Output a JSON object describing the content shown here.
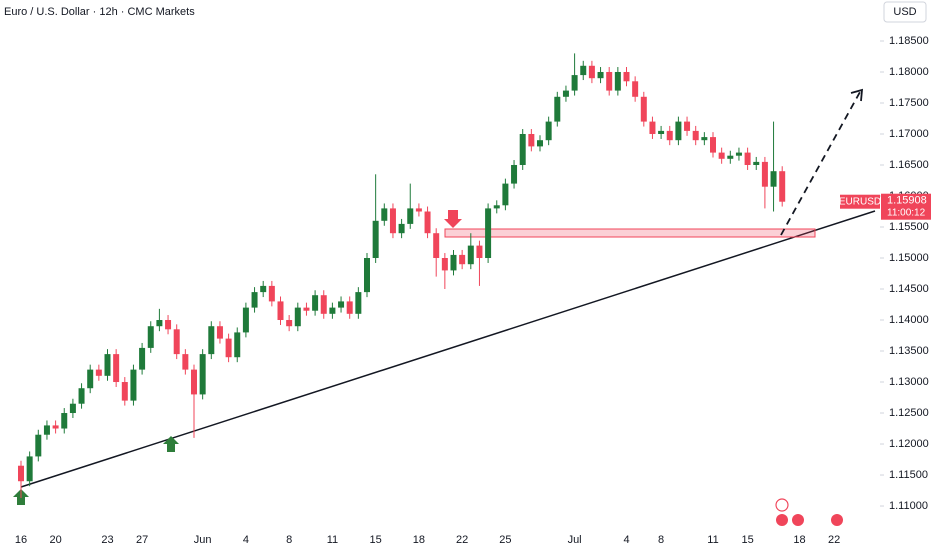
{
  "chart_data": {
    "type": "candlestick",
    "title": "Euro / U.S. Dollar · 12h · CMC Markets",
    "currency": "USD",
    "symbol": "EURUSD",
    "countdown": "11:00:12",
    "up_color": "#1f7a3a",
    "down_color": "#f0455a",
    "categories": [
      "16",
      null,
      null,
      null,
      "20",
      null,
      null,
      null,
      null,
      null,
      "23",
      null,
      null,
      null,
      "27",
      null,
      null,
      null,
      null,
      null,
      null,
      "Jun",
      null,
      null,
      null,
      null,
      "4",
      null,
      null,
      null,
      null,
      "8",
      null,
      null,
      null,
      null,
      "11",
      null,
      null,
      null,
      null,
      "15",
      null,
      null,
      null,
      null,
      "18",
      null,
      null,
      null,
      null,
      "22",
      null,
      null,
      null,
      null,
      "25",
      null,
      null,
      null,
      null,
      null,
      null,
      null,
      "Jul",
      null,
      null,
      null,
      null,
      null,
      "4",
      null,
      null,
      null,
      "8",
      null,
      null,
      null,
      null,
      null,
      "11",
      null,
      null,
      null,
      "15",
      null,
      null,
      null,
      null,
      null,
      "18",
      null,
      null,
      null,
      "22",
      null,
      null,
      null,
      null,
      null
    ],
    "open": [
      1.1165,
      1.114,
      1.118,
      1.1215,
      1.123,
      1.1225,
      1.125,
      1.1265,
      1.129,
      1.132,
      1.131,
      1.1345,
      1.13,
      1.127,
      1.132,
      1.1355,
      1.139,
      1.14,
      1.1385,
      1.1345,
      1.132,
      1.128,
      1.1345,
      1.139,
      1.137,
      1.134,
      1.138,
      1.142,
      1.1445,
      1.1455,
      1.143,
      1.14,
      1.139,
      1.142,
      1.1415,
      1.144,
      1.141,
      1.142,
      1.143,
      1.141,
      1.1445,
      1.15,
      1.156,
      1.158,
      1.154,
      1.1555,
      1.158,
      1.1575,
      1.154,
      1.15,
      1.148,
      1.1505,
      1.149,
      1.152,
      1.15,
      1.158,
      1.1585,
      1.162,
      1.165,
      1.17,
      1.168,
      1.169,
      1.172,
      1.176,
      1.177,
      1.1795,
      1.181,
      1.179,
      1.18,
      1.177,
      1.18,
      1.1785,
      1.176,
      1.172,
      1.17,
      1.1705,
      1.169,
      1.172,
      1.1705,
      1.169,
      1.1695,
      1.167,
      1.166,
      1.1665,
      1.167,
      1.165,
      1.1655,
      1.1615,
      1.164,
      null,
      null,
      null,
      null,
      null,
      null,
      null,
      null,
      null,
      null,
      null
    ],
    "high": [
      1.1173,
      1.1188,
      1.1223,
      1.1238,
      1.1238,
      1.1258,
      1.1273,
      1.1298,
      1.1328,
      1.1328,
      1.1353,
      1.1353,
      1.1308,
      1.1328,
      1.1363,
      1.1398,
      1.1418,
      1.1408,
      1.1393,
      1.1353,
      1.1328,
      1.1353,
      1.1398,
      1.1398,
      1.1378,
      1.1388,
      1.1428,
      1.1453,
      1.1463,
      1.1463,
      1.1438,
      1.1408,
      1.1428,
      1.1428,
      1.1448,
      1.1448,
      1.1428,
      1.1438,
      1.1438,
      1.1453,
      1.1508,
      1.1635,
      1.1588,
      1.1588,
      1.1563,
      1.162,
      1.1588,
      1.1583,
      1.1548,
      1.1508,
      1.1513,
      1.1513,
      1.154,
      1.1528,
      1.1588,
      1.1593,
      1.1628,
      1.1658,
      1.1708,
      1.1708,
      1.1698,
      1.1728,
      1.1768,
      1.1778,
      1.183,
      1.1818,
      1.1818,
      1.1808,
      1.1808,
      1.1808,
      1.1808,
      1.1793,
      1.1768,
      1.1728,
      1.1713,
      1.1713,
      1.1728,
      1.1728,
      1.1713,
      1.1703,
      1.1703,
      1.1678,
      1.1673,
      1.1678,
      1.1678,
      1.1663,
      1.1663,
      1.172,
      1.1648,
      null,
      null,
      null,
      null,
      null,
      null,
      null,
      null,
      null,
      null,
      null
    ],
    "low": [
      1.1113,
      1.1132,
      1.1172,
      1.1207,
      1.1217,
      1.1217,
      1.1242,
      1.1257,
      1.1282,
      1.1302,
      1.1302,
      1.1292,
      1.1262,
      1.1262,
      1.1312,
      1.1347,
      1.1382,
      1.1377,
      1.1337,
      1.1312,
      1.121,
      1.1272,
      1.1337,
      1.1362,
      1.1332,
      1.1332,
      1.1372,
      1.1412,
      1.1437,
      1.1422,
      1.1392,
      1.1382,
      1.1382,
      1.1407,
      1.1407,
      1.1402,
      1.1402,
      1.1412,
      1.1402,
      1.1402,
      1.1437,
      1.1492,
      1.1552,
      1.1532,
      1.1532,
      1.1547,
      1.1567,
      1.1532,
      1.147,
      1.145,
      1.1472,
      1.1482,
      1.1482,
      1.1455,
      1.1492,
      1.1572,
      1.1577,
      1.1612,
      1.1642,
      1.1672,
      1.1672,
      1.1682,
      1.1712,
      1.1752,
      1.1762,
      1.1787,
      1.1782,
      1.1782,
      1.1762,
      1.1762,
      1.1777,
      1.1752,
      1.1712,
      1.1692,
      1.1692,
      1.1682,
      1.1682,
      1.1697,
      1.1682,
      1.1682,
      1.1662,
      1.1652,
      1.1652,
      1.1657,
      1.1642,
      1.1642,
      1.158,
      1.1575,
      1.1583,
      null,
      null,
      null,
      null,
      null,
      null,
      null,
      null,
      null,
      null,
      null
    ],
    "close": [
      1.114,
      1.118,
      1.1215,
      1.123,
      1.1225,
      1.125,
      1.1265,
      1.129,
      1.132,
      1.131,
      1.1345,
      1.13,
      1.127,
      1.132,
      1.1355,
      1.139,
      1.14,
      1.1385,
      1.1345,
      1.132,
      1.128,
      1.1345,
      1.139,
      1.137,
      1.134,
      1.138,
      1.142,
      1.1445,
      1.1455,
      1.143,
      1.14,
      1.139,
      1.142,
      1.1415,
      1.144,
      1.141,
      1.142,
      1.143,
      1.141,
      1.1445,
      1.15,
      1.156,
      1.158,
      1.154,
      1.1555,
      1.158,
      1.1575,
      1.154,
      1.15,
      1.148,
      1.1505,
      1.149,
      1.152,
      1.15,
      1.158,
      1.1585,
      1.162,
      1.165,
      1.17,
      1.168,
      1.169,
      1.172,
      1.176,
      1.177,
      1.1795,
      1.181,
      1.179,
      1.18,
      1.177,
      1.18,
      1.1785,
      1.176,
      1.172,
      1.17,
      1.1705,
      1.169,
      1.172,
      1.1705,
      1.169,
      1.1695,
      1.167,
      1.166,
      1.1665,
      1.167,
      1.165,
      1.1655,
      1.1615,
      1.164,
      1.15908,
      null,
      null,
      null,
      null,
      null,
      null,
      null,
      null,
      null,
      null,
      null
    ],
    "ylim": [
      1.10694,
      1.19161
    ],
    "yticks": [
      {
        "value": 1.185,
        "label": "1.18500"
      },
      {
        "value": 1.18,
        "label": "1.18000"
      },
      {
        "value": 1.175,
        "label": "1.17500"
      },
      {
        "value": 1.17,
        "label": "1.17000"
      },
      {
        "value": 1.165,
        "label": "1.16500"
      },
      {
        "value": 1.16,
        "label": "1.16000"
      },
      {
        "value": 1.155,
        "label": "1.15500"
      },
      {
        "value": 1.15,
        "label": "1.15000"
      },
      {
        "value": 1.145,
        "label": "1.14500"
      },
      {
        "value": 1.14,
        "label": "1.14000"
      },
      {
        "value": 1.135,
        "label": "1.13500"
      },
      {
        "value": 1.13,
        "label": "1.13000"
      },
      {
        "value": 1.125,
        "label": "1.12500"
      },
      {
        "value": 1.12,
        "label": "1.12000"
      },
      {
        "value": 1.115,
        "label": "1.11500"
      },
      {
        "value": 1.11,
        "label": "1.11000"
      }
    ],
    "grid": false
  }
}
